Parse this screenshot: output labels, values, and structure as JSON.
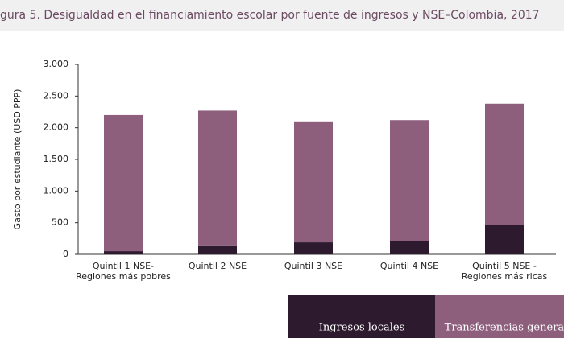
{
  "chart_data": {
    "type": "stacked_bar",
    "title": "gura 5. Desigualdad en el financiamiento escolar por fuente de ingresos y NSE–Colombia, 2017",
    "y_label": "Gasto por estudiante (USD PPP)",
    "categories": [
      [
        "Quintil 1 NSE-",
        "Regiones más pobres"
      ],
      [
        "Quintil 2 NSE"
      ],
      [
        "Quintil 3 NSE"
      ],
      [
        "Quintil 4 NSE"
      ],
      [
        "Quintil 5 NSE -",
        "Regiones más ricas"
      ]
    ],
    "series": [
      {
        "name": "Ingresos locales",
        "color": "#2e1a2e",
        "values": [
          50,
          130,
          190,
          210,
          470
        ]
      },
      {
        "name": "Transferencias general",
        "color": "#8d5f7d",
        "values": [
          2150,
          2140,
          1910,
          1910,
          1910
        ]
      }
    ],
    "ylim": [
      0,
      3000
    ],
    "yticks": [
      0,
      500,
      {
        "value": 1000,
        "label": "1.000"
      },
      {
        "value": 1500,
        "label": "1.500"
      },
      {
        "value": 2000,
        "label": "2.000"
      },
      {
        "value": 2500,
        "label": "2.500"
      },
      {
        "value": 3000,
        "label": "3.000"
      }
    ],
    "grid": false
  }
}
